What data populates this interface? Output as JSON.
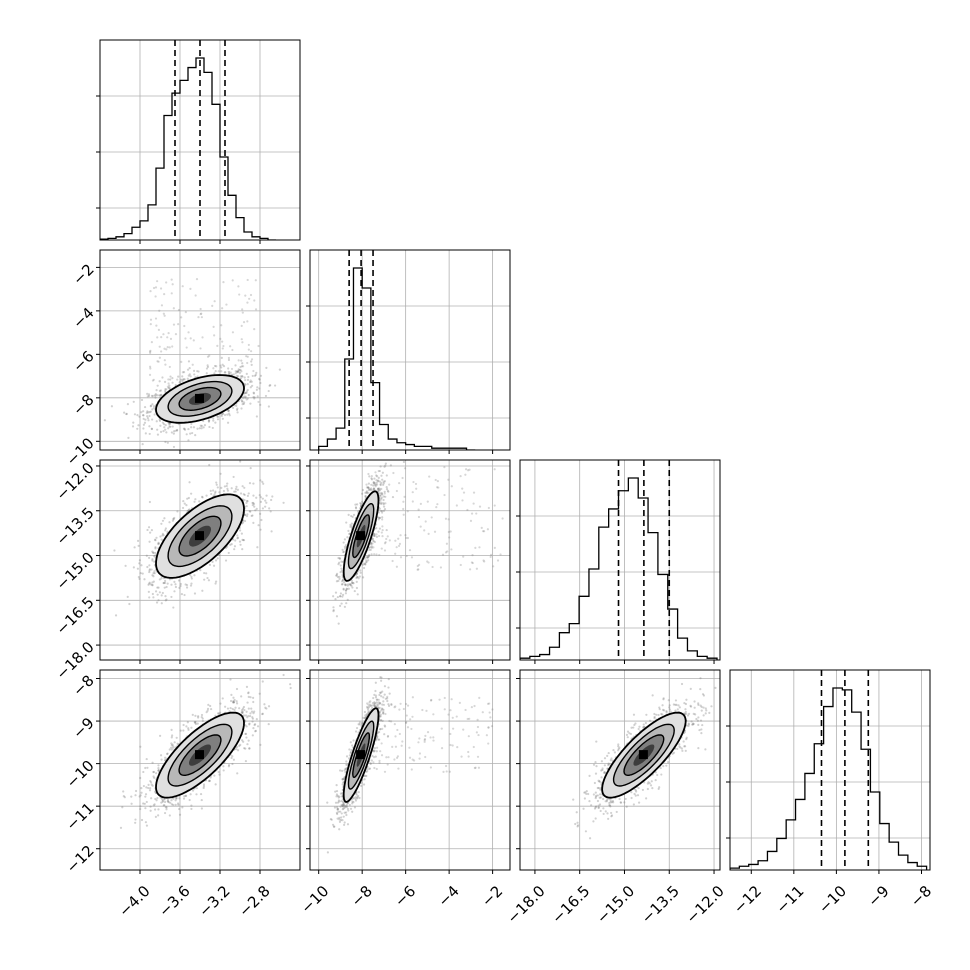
{
  "chart_data": {
    "type": "corner",
    "description_free": true,
    "variables": [
      {
        "range": [
          -4.4,
          -2.4
        ],
        "ticks": [
          -4.0,
          -3.6,
          -3.2,
          -2.8
        ],
        "tick_labels": [
          "−4.0",
          "−3.6",
          "−3.2",
          "−2.8"
        ],
        "quantiles": [
          -3.65,
          -3.4,
          -3.15
        ]
      },
      {
        "range": [
          -10.4,
          -1.2
        ],
        "ticks": [
          -10,
          -8,
          -6,
          -4,
          -2
        ],
        "tick_labels": [
          "−10",
          "−8",
          "−6",
          "−4",
          "−2"
        ],
        "quantiles": [
          -8.6,
          -8.05,
          -7.5
        ]
      },
      {
        "range": [
          -18.5,
          -11.8
        ],
        "ticks": [
          -18.0,
          -16.5,
          -15.0,
          -13.5,
          -12.0
        ],
        "tick_labels": [
          "−18.0",
          "−16.5",
          "−15.0",
          "−13.5",
          "−12.0"
        ],
        "quantiles": [
          -15.2,
          -14.35,
          -13.5
        ]
      },
      {
        "range": [
          -12.5,
          -7.8
        ],
        "ticks": [
          -12,
          -11,
          -10,
          -9,
          -8
        ],
        "tick_labels": [
          "−12",
          "−11",
          "−10",
          "−9",
          "−8"
        ],
        "quantiles": [
          -10.35,
          -9.8,
          -9.25
        ]
      }
    ],
    "row_ticks": {
      "1": {
        "ticks": [
          -2,
          -4,
          -6,
          -8,
          -10
        ],
        "tick_labels": [
          "−2",
          "−4",
          "−6",
          "−8",
          "−10"
        ]
      },
      "2": {
        "ticks": [
          -12.0,
          -13.5,
          -15.0,
          -16.5,
          -18.0
        ],
        "tick_labels": [
          "−12.0",
          "−13.5",
          "−15.0",
          "−16.5",
          "−18.0"
        ]
      },
      "3": {
        "ticks": [
          -8,
          -9,
          -10,
          -11,
          -12
        ],
        "tick_labels": [
          "−8",
          "−9",
          "−10",
          "−11",
          "−12"
        ]
      }
    },
    "histograms": [
      {
        "var": 0,
        "bins": [
          -4.4,
          -4.32,
          -4.24,
          -4.16,
          -4.08,
          -4.0,
          -3.92,
          -3.84,
          -3.76,
          -3.68,
          -3.6,
          -3.52,
          -3.44,
          -3.36,
          -3.28,
          -3.2,
          -3.12,
          -3.04,
          -2.96,
          -2.88,
          -2.8,
          -2.72,
          -2.64
        ],
        "counts": [
          0.5,
          1,
          2,
          4,
          8,
          12,
          22,
          45,
          78,
          92,
          100,
          108,
          114,
          105,
          85,
          52,
          28,
          14,
          5,
          2,
          1,
          0
        ]
      },
      {
        "var": 1,
        "bins": [
          -10.0,
          -9.6,
          -9.2,
          -8.8,
          -8.4,
          -8.0,
          -7.6,
          -7.2,
          -6.8,
          -6.4,
          -6.0,
          -5.6,
          -5.2,
          -4.8,
          -4.4,
          -4.0,
          -3.6,
          -3.2,
          -2.8
        ],
        "counts": [
          2,
          6,
          12,
          50,
          100,
          89,
          37,
          14,
          6,
          4,
          3,
          2,
          2,
          1,
          1,
          1,
          1,
          0
        ]
      },
      {
        "var": 2,
        "bins": [
          -18.5,
          -18.17,
          -17.84,
          -17.51,
          -17.18,
          -16.85,
          -16.52,
          -16.19,
          -15.86,
          -15.53,
          -15.2,
          -14.87,
          -14.54,
          -14.21,
          -13.88,
          -13.55,
          -13.22,
          -12.89,
          -12.56,
          -12.23,
          -11.9
        ],
        "counts": [
          1,
          2,
          3,
          7,
          15,
          20,
          35,
          50,
          73,
          83,
          93,
          100,
          89,
          70,
          47,
          28,
          12,
          5,
          2,
          1
        ]
      },
      {
        "var": 3,
        "bins": [
          -12.5,
          -12.28,
          -12.06,
          -11.84,
          -11.62,
          -11.4,
          -11.18,
          -10.96,
          -10.74,
          -10.52,
          -10.3,
          -10.08,
          -9.86,
          -9.64,
          -9.42,
          -9.2,
          -8.98,
          -8.76,
          -8.54,
          -8.32,
          -8.1,
          -7.88
        ],
        "counts": [
          1,
          2,
          3,
          5,
          10,
          17,
          27,
          38,
          52,
          68,
          88,
          98,
          97,
          85,
          65,
          42,
          25,
          15,
          8,
          4,
          2
        ]
      }
    ],
    "pairs": [
      {
        "x": 0,
        "y": 1,
        "mean": [
          -3.4,
          -8.05
        ],
        "sd": [
          0.22,
          0.55
        ],
        "rho": 0.45,
        "outlier_extent": [
          -3.9,
          -2.8,
          -8.5,
          -2.5
        ]
      },
      {
        "x": 0,
        "y": 2,
        "mean": [
          -3.4,
          -14.35
        ],
        "sd": [
          0.22,
          0.7
        ],
        "rho": 0.65
      },
      {
        "x": 1,
        "y": 2,
        "mean": [
          -8.05,
          -14.35
        ],
        "sd": [
          0.4,
          0.75
        ],
        "rho": 0.8,
        "outlier_extent": [
          -7.8,
          -1.5,
          -15.5,
          -12.0
        ]
      },
      {
        "x": 0,
        "y": 3,
        "mean": [
          -3.4,
          -9.8
        ],
        "sd": [
          0.22,
          0.5
        ],
        "rho": 0.75
      },
      {
        "x": 1,
        "y": 3,
        "mean": [
          -8.05,
          -9.8
        ],
        "sd": [
          0.4,
          0.55
        ],
        "rho": 0.85,
        "outlier_extent": [
          -7.8,
          -2.0,
          -10.2,
          -8.4
        ]
      },
      {
        "x": 2,
        "y": 3,
        "mean": [
          -14.35,
          -9.8
        ],
        "sd": [
          0.7,
          0.5
        ],
        "rho": 0.8
      }
    ],
    "grid": true,
    "quantile_style": "dashed"
  }
}
